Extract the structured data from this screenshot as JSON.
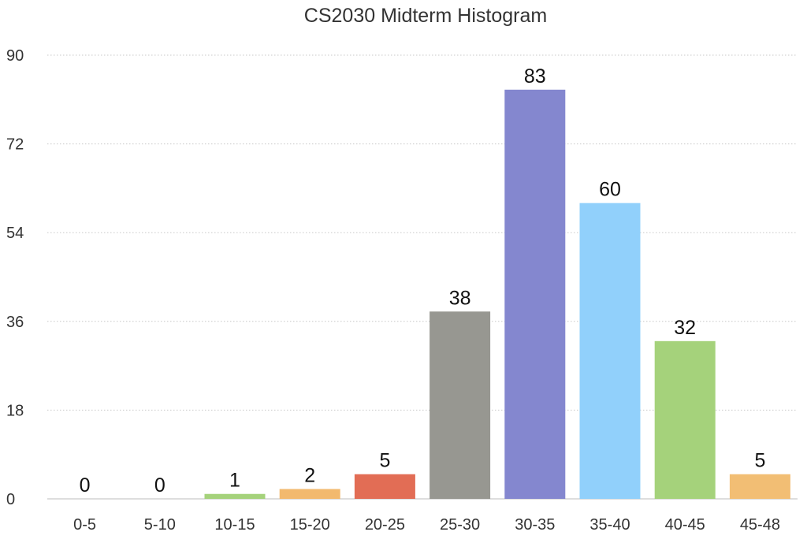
{
  "chart_data": {
    "type": "bar",
    "title": "CS2030 Midterm Histogram",
    "xlabel": "",
    "ylabel": "",
    "categories": [
      "0-5",
      "5-10",
      "10-15",
      "15-20",
      "20-25",
      "25-30",
      "30-35",
      "35-40",
      "40-45",
      "45-48"
    ],
    "values": [
      0,
      0,
      1,
      2,
      5,
      38,
      83,
      60,
      32,
      5
    ],
    "bar_colors": [
      "#a5d27b",
      "#f2b96e",
      "#a5d27b",
      "#f2b96e",
      "#e26d55",
      "#979791",
      "#8487cf",
      "#91d0fb",
      "#a5d27b",
      "#f2be74"
    ],
    "ylim": [
      0,
      90
    ],
    "yticks": [
      0,
      18,
      36,
      54,
      72,
      90
    ],
    "grid": true,
    "show_data_labels": true,
    "legend": "none"
  }
}
